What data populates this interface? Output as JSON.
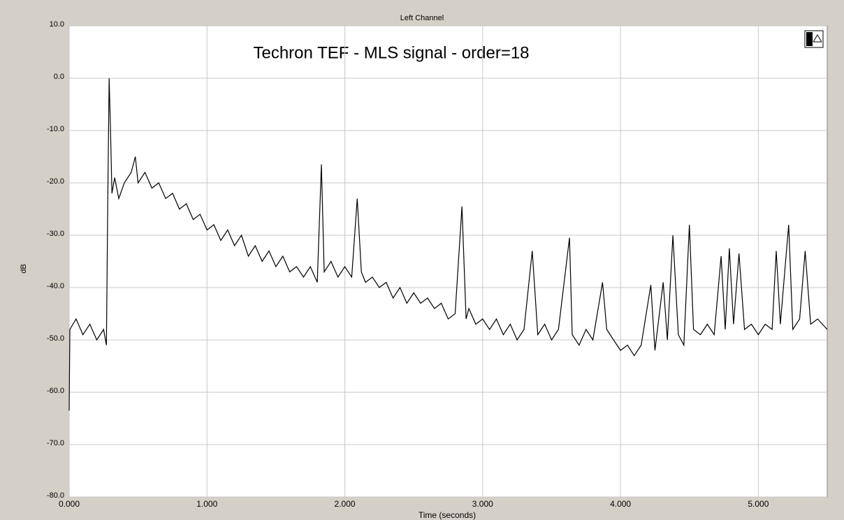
{
  "chart_data": {
    "type": "line",
    "header": "Left Channel",
    "title": "Techron TEF - MLS signal - order=18",
    "x_label": "Time (seconds)",
    "y_label": "dB",
    "grid": true,
    "xlim": [
      0,
      5.5
    ],
    "ylim": [
      -80,
      10
    ],
    "xticks": [
      {
        "value": 0,
        "label": "0.000"
      },
      {
        "value": 1,
        "label": "1.000"
      },
      {
        "value": 2,
        "label": "2.000"
      },
      {
        "value": 3,
        "label": "3.000"
      },
      {
        "value": 4,
        "label": "4.000"
      },
      {
        "value": 5,
        "label": "5.000"
      }
    ],
    "yticks": [
      {
        "value": 10,
        "label": "10.0"
      },
      {
        "value": 0,
        "label": "0.0"
      },
      {
        "value": -10,
        "label": "-10.0"
      },
      {
        "value": -20,
        "label": "-20.0"
      },
      {
        "value": -30,
        "label": "-30.0"
      },
      {
        "value": -40,
        "label": "-40.0"
      },
      {
        "value": -50,
        "label": "-50.0"
      },
      {
        "value": -60,
        "label": "-60.0"
      },
      {
        "value": -70,
        "label": "-70.0"
      },
      {
        "value": -80,
        "label": "-80.0"
      }
    ],
    "x": [
      0,
      0.005,
      0.05,
      0.1,
      0.15,
      0.2,
      0.25,
      0.27,
      0.28,
      0.29,
      0.3,
      0.31,
      0.33,
      0.36,
      0.4,
      0.45,
      0.48,
      0.5,
      0.55,
      0.6,
      0.65,
      0.7,
      0.75,
      0.8,
      0.85,
      0.9,
      0.95,
      1.0,
      1.05,
      1.1,
      1.15,
      1.2,
      1.25,
      1.3,
      1.35,
      1.4,
      1.45,
      1.5,
      1.55,
      1.6,
      1.65,
      1.7,
      1.75,
      1.8,
      1.83,
      1.85,
      1.9,
      1.95,
      2.0,
      2.05,
      2.09,
      2.12,
      2.15,
      2.2,
      2.25,
      2.3,
      2.35,
      2.4,
      2.45,
      2.5,
      2.55,
      2.6,
      2.65,
      2.7,
      2.75,
      2.8,
      2.85,
      2.88,
      2.9,
      2.95,
      3.0,
      3.05,
      3.1,
      3.15,
      3.2,
      3.25,
      3.3,
      3.36,
      3.4,
      3.45,
      3.5,
      3.55,
      3.63,
      3.65,
      3.7,
      3.75,
      3.8,
      3.87,
      3.9,
      3.95,
      4.0,
      4.05,
      4.1,
      4.15,
      4.22,
      4.25,
      4.31,
      4.34,
      4.38,
      4.42,
      4.46,
      4.5,
      4.53,
      4.58,
      4.63,
      4.68,
      4.73,
      4.76,
      4.79,
      4.82,
      4.86,
      4.9,
      4.95,
      5.0,
      5.05,
      5.1,
      5.13,
      5.16,
      5.22,
      5.25,
      5.3,
      5.34,
      5.38,
      5.43,
      5.5
    ],
    "series": [
      {
        "color": "#000000",
        "values": [
          -63.5,
          -48,
          -46,
          -49,
          -47,
          -50,
          -48,
          -51,
          -24,
          0,
          -10,
          -22,
          -19,
          -23,
          -20,
          -18,
          -15,
          -20,
          -18,
          -21,
          -20,
          -23,
          -22,
          -25,
          -24,
          -27,
          -26,
          -29,
          -28,
          -31,
          -29,
          -32,
          -30,
          -34,
          -32,
          -35,
          -33,
          -36,
          -34,
          -37,
          -36,
          -38,
          -36,
          -39,
          -16.5,
          -37,
          -35,
          -38,
          -36,
          -38,
          -23,
          -37,
          -39,
          -38,
          -40,
          -39,
          -42,
          -40,
          -43,
          -41,
          -43,
          -42,
          -44,
          -43,
          -46,
          -45,
          -24.5,
          -46,
          -44,
          -47,
          -46,
          -48,
          -46,
          -49,
          -47,
          -50,
          -48,
          -33,
          -49,
          -47,
          -50,
          -48,
          -30.5,
          -49,
          -51,
          -48,
          -50,
          -39,
          -48,
          -50,
          -52,
          -51,
          -53,
          -51,
          -39.5,
          -52,
          -39,
          -50,
          -30,
          -49,
          -51,
          -28,
          -48,
          -49,
          -47,
          -49,
          -34,
          -48,
          -32.5,
          -47,
          -33.5,
          -48,
          -47,
          -49,
          -47,
          -48,
          -33,
          -47,
          -28,
          -48,
          -46,
          -33,
          -47,
          -46,
          -48
        ]
      }
    ]
  }
}
